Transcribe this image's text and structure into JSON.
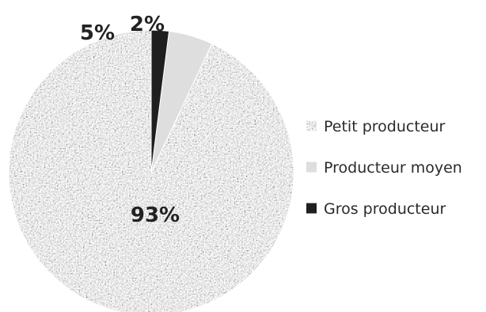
{
  "chart_data": {
    "type": "pie",
    "categories": [
      "Petit producteur",
      "Producteur moyen",
      "Gros producteur"
    ],
    "values": [
      93,
      5,
      2
    ],
    "data_labels": [
      "93%",
      "5%",
      "2%"
    ],
    "title": "",
    "legend_position": "right",
    "colors": [
      "#a9a9a9",
      "#dedede",
      "#1f1f1f"
    ],
    "textures": [
      "speckled",
      "solid",
      "solid"
    ]
  }
}
